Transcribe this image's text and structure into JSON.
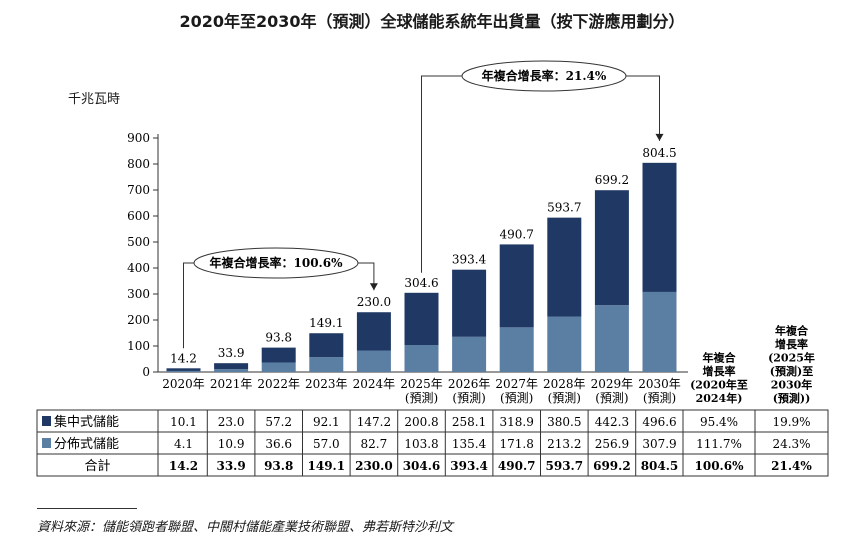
{
  "title": "2020年至2030年（預測）全球儲能系統年出貨量（按下游應用劃分）",
  "unit_label": "千兆瓦時",
  "source": "資料來源：儲能領跑者聯盟、中關村儲能產業技術聯盟、弗若斯特沙利文",
  "colors": {
    "dark": "#1f3864",
    "light": "#5b7ea3"
  },
  "chart_data": {
    "type": "bar",
    "stacked": true,
    "categories": [
      "2020年",
      "2021年",
      "2022年",
      "2023年",
      "2024年",
      "2025年",
      "2026年",
      "2027年",
      "2028年",
      "2029年",
      "2030年"
    ],
    "category_sub": [
      "",
      "",
      "",
      "",
      "",
      "(預測)",
      "(預測)",
      "(預測)",
      "(預測)",
      "(預測)",
      "(預測)"
    ],
    "series": [
      {
        "name": "分佈式儲能",
        "values": [
          4.1,
          10.9,
          36.6,
          57.0,
          82.7,
          103.8,
          135.4,
          171.8,
          213.2,
          256.9,
          307.9
        ]
      },
      {
        "name": "集中式儲能",
        "values": [
          10.1,
          23.0,
          57.2,
          92.1,
          147.2,
          200.8,
          258.1,
          318.9,
          380.5,
          442.3,
          496.6
        ]
      }
    ],
    "totals": [
      "14.2",
      "33.9",
      "93.8",
      "149.1",
      "230.0",
      "304.6",
      "393.4",
      "490.7",
      "593.7",
      "699.2",
      "804.5"
    ],
    "ylim": [
      0,
      900
    ],
    "yticks": [
      0,
      100,
      200,
      300,
      400,
      500,
      600,
      700,
      800,
      900
    ],
    "annotations": [
      {
        "text": "年複合增長率：100.6%",
        "from": "2020年",
        "to": "2024年"
      },
      {
        "text": "年複合增長率：21.4%",
        "from": "2025年",
        "to": "2030年"
      }
    ],
    "table": {
      "cagr_headers": [
        [
          "年複合",
          "增長率",
          "(2020年至",
          "2024年)"
        ],
        [
          "年複合",
          "增長率",
          "(2025年",
          "(預測)至",
          "2030年",
          "(預測))"
        ]
      ],
      "rows": [
        {
          "label": "集中式儲能",
          "swatch": "dark",
          "values": [
            "10.1",
            "23.0",
            "57.2",
            "92.1",
            "147.2",
            "200.8",
            "258.1",
            "318.9",
            "380.5",
            "442.3",
            "496.6"
          ],
          "cagr": [
            "95.4%",
            "19.9%"
          ],
          "bold": false
        },
        {
          "label": "分佈式儲能",
          "swatch": "light",
          "values": [
            "4.1",
            "10.9",
            "36.6",
            "57.0",
            "82.7",
            "103.8",
            "135.4",
            "171.8",
            "213.2",
            "256.9",
            "307.9"
          ],
          "cagr": [
            "111.7%",
            "24.3%"
          ],
          "bold": false
        },
        {
          "label": "合計",
          "swatch": "",
          "values": [
            "14.2",
            "33.9",
            "93.8",
            "149.1",
            "230.0",
            "304.6",
            "393.4",
            "490.7",
            "593.7",
            "699.2",
            "804.5"
          ],
          "cagr": [
            "100.6%",
            "21.4%"
          ],
          "bold": true
        }
      ]
    }
  }
}
